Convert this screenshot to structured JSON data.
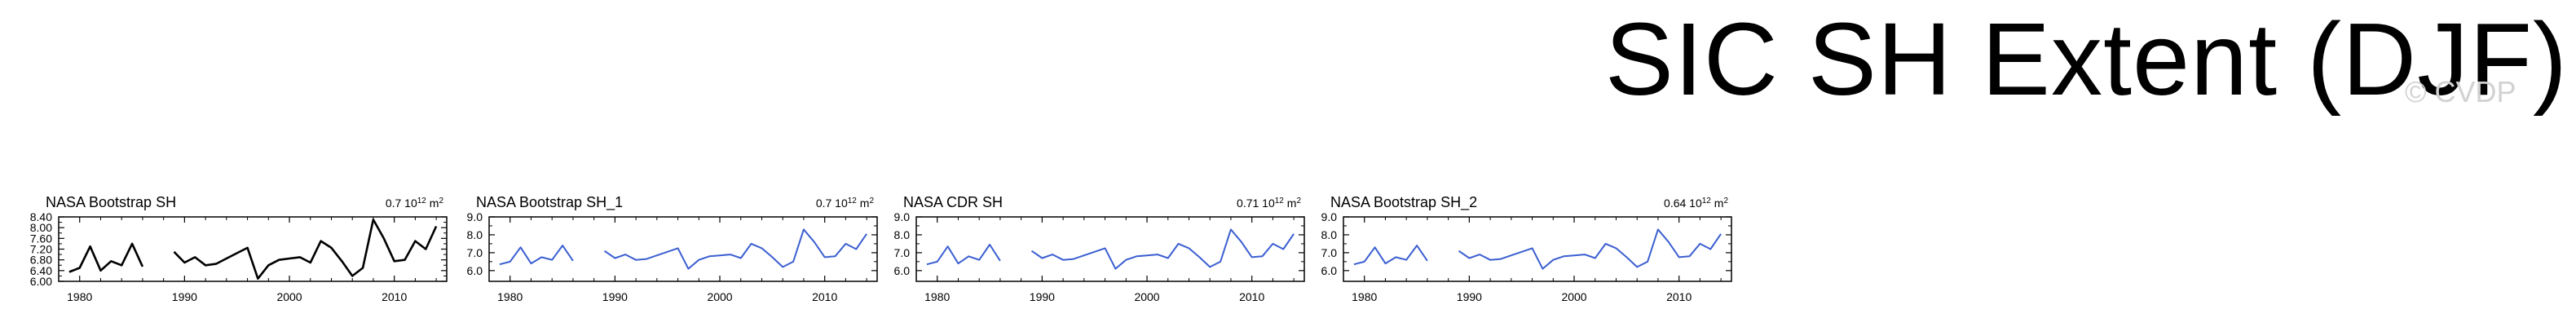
{
  "page": {
    "title": "SIC SH Extent (DJF)",
    "watermark": "© CVDP"
  },
  "colors": {
    "black_series": "#000000",
    "blue_series": "#3b5fd0",
    "axis": "#000000"
  },
  "chart_data": [
    {
      "type": "line",
      "title": "NASA Bootstrap SH",
      "stat_value": "0.7",
      "stat_unit_base": "10",
      "stat_unit_exp": "12",
      "stat_unit_tail": "m",
      "stat_unit_tail_exp": "2",
      "series_color": "#000000",
      "xlim": [
        1978,
        2015
      ],
      "ylim": [
        6.0,
        8.4
      ],
      "xticks": [
        1980,
        1990,
        2000,
        2010
      ],
      "xticklabels": [
        "1980",
        "1990",
        "2000",
        "2010"
      ],
      "yticks": [
        6.0,
        6.4,
        6.8,
        7.2,
        7.6,
        8.0,
        8.4
      ],
      "yticklabels": [
        "6.00",
        "6.40",
        "6.80",
        "7.20",
        "7.60",
        "8.00",
        "8.40"
      ],
      "x": [
        1979,
        1980,
        1981,
        1982,
        1983,
        1984,
        1985,
        1986,
        1987,
        1988,
        1989,
        1990,
        1991,
        1992,
        1993,
        1994,
        1995,
        1996,
        1997,
        1998,
        1999,
        2000,
        2001,
        2002,
        2003,
        2004,
        2005,
        2006,
        2007,
        2008,
        2009,
        2010,
        2011,
        2012,
        2013,
        2014
      ],
      "y": [
        6.35,
        6.5,
        7.3,
        6.4,
        6.75,
        6.6,
        7.4,
        6.55,
        null,
        null,
        7.1,
        6.7,
        6.9,
        6.6,
        6.65,
        6.85,
        7.05,
        7.25,
        6.1,
        6.6,
        6.8,
        6.85,
        6.9,
        6.7,
        7.5,
        7.25,
        6.75,
        6.2,
        6.5,
        8.3,
        7.6,
        6.75,
        6.8,
        7.5,
        7.2,
        8.05
      ]
    },
    {
      "type": "line",
      "title": "NASA Bootstrap SH_1",
      "stat_value": "0.7",
      "stat_unit_base": "10",
      "stat_unit_exp": "12",
      "stat_unit_tail": "m",
      "stat_unit_tail_exp": "2",
      "series_color": "#3b5fd0",
      "xlim": [
        1978,
        2015
      ],
      "ylim": [
        5.4,
        9.0
      ],
      "xticks": [
        1980,
        1990,
        2000,
        2010
      ],
      "xticklabels": [
        "1980",
        "1990",
        "2000",
        "2010"
      ],
      "yticks": [
        6.0,
        7.0,
        8.0,
        9.0
      ],
      "yticklabels": [
        "6.0",
        "7.0",
        "8.0",
        "9.0"
      ],
      "x": [
        1979,
        1980,
        1981,
        1982,
        1983,
        1984,
        1985,
        1986,
        1987,
        1988,
        1989,
        1990,
        1991,
        1992,
        1993,
        1994,
        1995,
        1996,
        1997,
        1998,
        1999,
        2000,
        2001,
        2002,
        2003,
        2004,
        2005,
        2006,
        2007,
        2008,
        2009,
        2010,
        2011,
        2012,
        2013,
        2014
      ],
      "y": [
        6.35,
        6.5,
        7.3,
        6.4,
        6.75,
        6.6,
        7.4,
        6.55,
        null,
        null,
        7.1,
        6.7,
        6.9,
        6.6,
        6.65,
        6.85,
        7.05,
        7.25,
        6.1,
        6.6,
        6.8,
        6.85,
        6.9,
        6.7,
        7.5,
        7.25,
        6.75,
        6.2,
        6.5,
        8.3,
        7.6,
        6.75,
        6.8,
        7.5,
        7.2,
        8.05
      ]
    },
    {
      "type": "line",
      "title": "NASA CDR SH",
      "stat_value": "0.71",
      "stat_unit_base": "10",
      "stat_unit_exp": "12",
      "stat_unit_tail": "m",
      "stat_unit_tail_exp": "2",
      "series_color": "#3b5fd0",
      "xlim": [
        1978,
        2015
      ],
      "ylim": [
        5.4,
        9.0
      ],
      "xticks": [
        1980,
        1990,
        2000,
        2010
      ],
      "xticklabels": [
        "1980",
        "1990",
        "2000",
        "2010"
      ],
      "yticks": [
        6.0,
        7.0,
        8.0,
        9.0
      ],
      "yticklabels": [
        "6.0",
        "7.0",
        "8.0",
        "9.0"
      ],
      "x": [
        1979,
        1980,
        1981,
        1982,
        1983,
        1984,
        1985,
        1986,
        1987,
        1988,
        1989,
        1990,
        1991,
        1992,
        1993,
        1994,
        1995,
        1996,
        1997,
        1998,
        1999,
        2000,
        2001,
        2002,
        2003,
        2004,
        2005,
        2006,
        2007,
        2008,
        2009,
        2010,
        2011,
        2012,
        2013,
        2014
      ],
      "y": [
        6.35,
        6.5,
        7.35,
        6.4,
        6.8,
        6.6,
        7.45,
        6.55,
        null,
        null,
        7.1,
        6.7,
        6.9,
        6.6,
        6.65,
        6.85,
        7.05,
        7.25,
        6.1,
        6.6,
        6.8,
        6.85,
        6.9,
        6.7,
        7.5,
        7.25,
        6.75,
        6.2,
        6.5,
        8.3,
        7.6,
        6.75,
        6.8,
        7.5,
        7.2,
        8.05
      ]
    },
    {
      "type": "line",
      "title": "NASA Bootstrap SH_2",
      "stat_value": "0.64",
      "stat_unit_base": "10",
      "stat_unit_exp": "12",
      "stat_unit_tail": "m",
      "stat_unit_tail_exp": "2",
      "series_color": "#3b5fd0",
      "xlim": [
        1978,
        2015
      ],
      "ylim": [
        5.4,
        9.0
      ],
      "xticks": [
        1980,
        1990,
        2000,
        2010
      ],
      "xticklabels": [
        "1980",
        "1990",
        "2000",
        "2010"
      ],
      "yticks": [
        6.0,
        7.0,
        8.0,
        9.0
      ],
      "yticklabels": [
        "6.0",
        "7.0",
        "8.0",
        "9.0"
      ],
      "x": [
        1979,
        1980,
        1981,
        1982,
        1983,
        1984,
        1985,
        1986,
        1987,
        1988,
        1989,
        1990,
        1991,
        1992,
        1993,
        1994,
        1995,
        1996,
        1997,
        1998,
        1999,
        2000,
        2001,
        2002,
        2003,
        2004,
        2005,
        2006,
        2007,
        2008,
        2009,
        2010,
        2011,
        2012,
        2013,
        2014
      ],
      "y": [
        6.35,
        6.5,
        7.3,
        6.4,
        6.75,
        6.6,
        7.4,
        6.55,
        null,
        null,
        7.1,
        6.7,
        6.9,
        6.6,
        6.65,
        6.85,
        7.05,
        7.25,
        6.1,
        6.6,
        6.8,
        6.85,
        6.9,
        6.7,
        7.5,
        7.25,
        6.75,
        6.2,
        6.5,
        8.3,
        7.6,
        6.75,
        6.8,
        7.5,
        7.2,
        8.05
      ]
    }
  ]
}
